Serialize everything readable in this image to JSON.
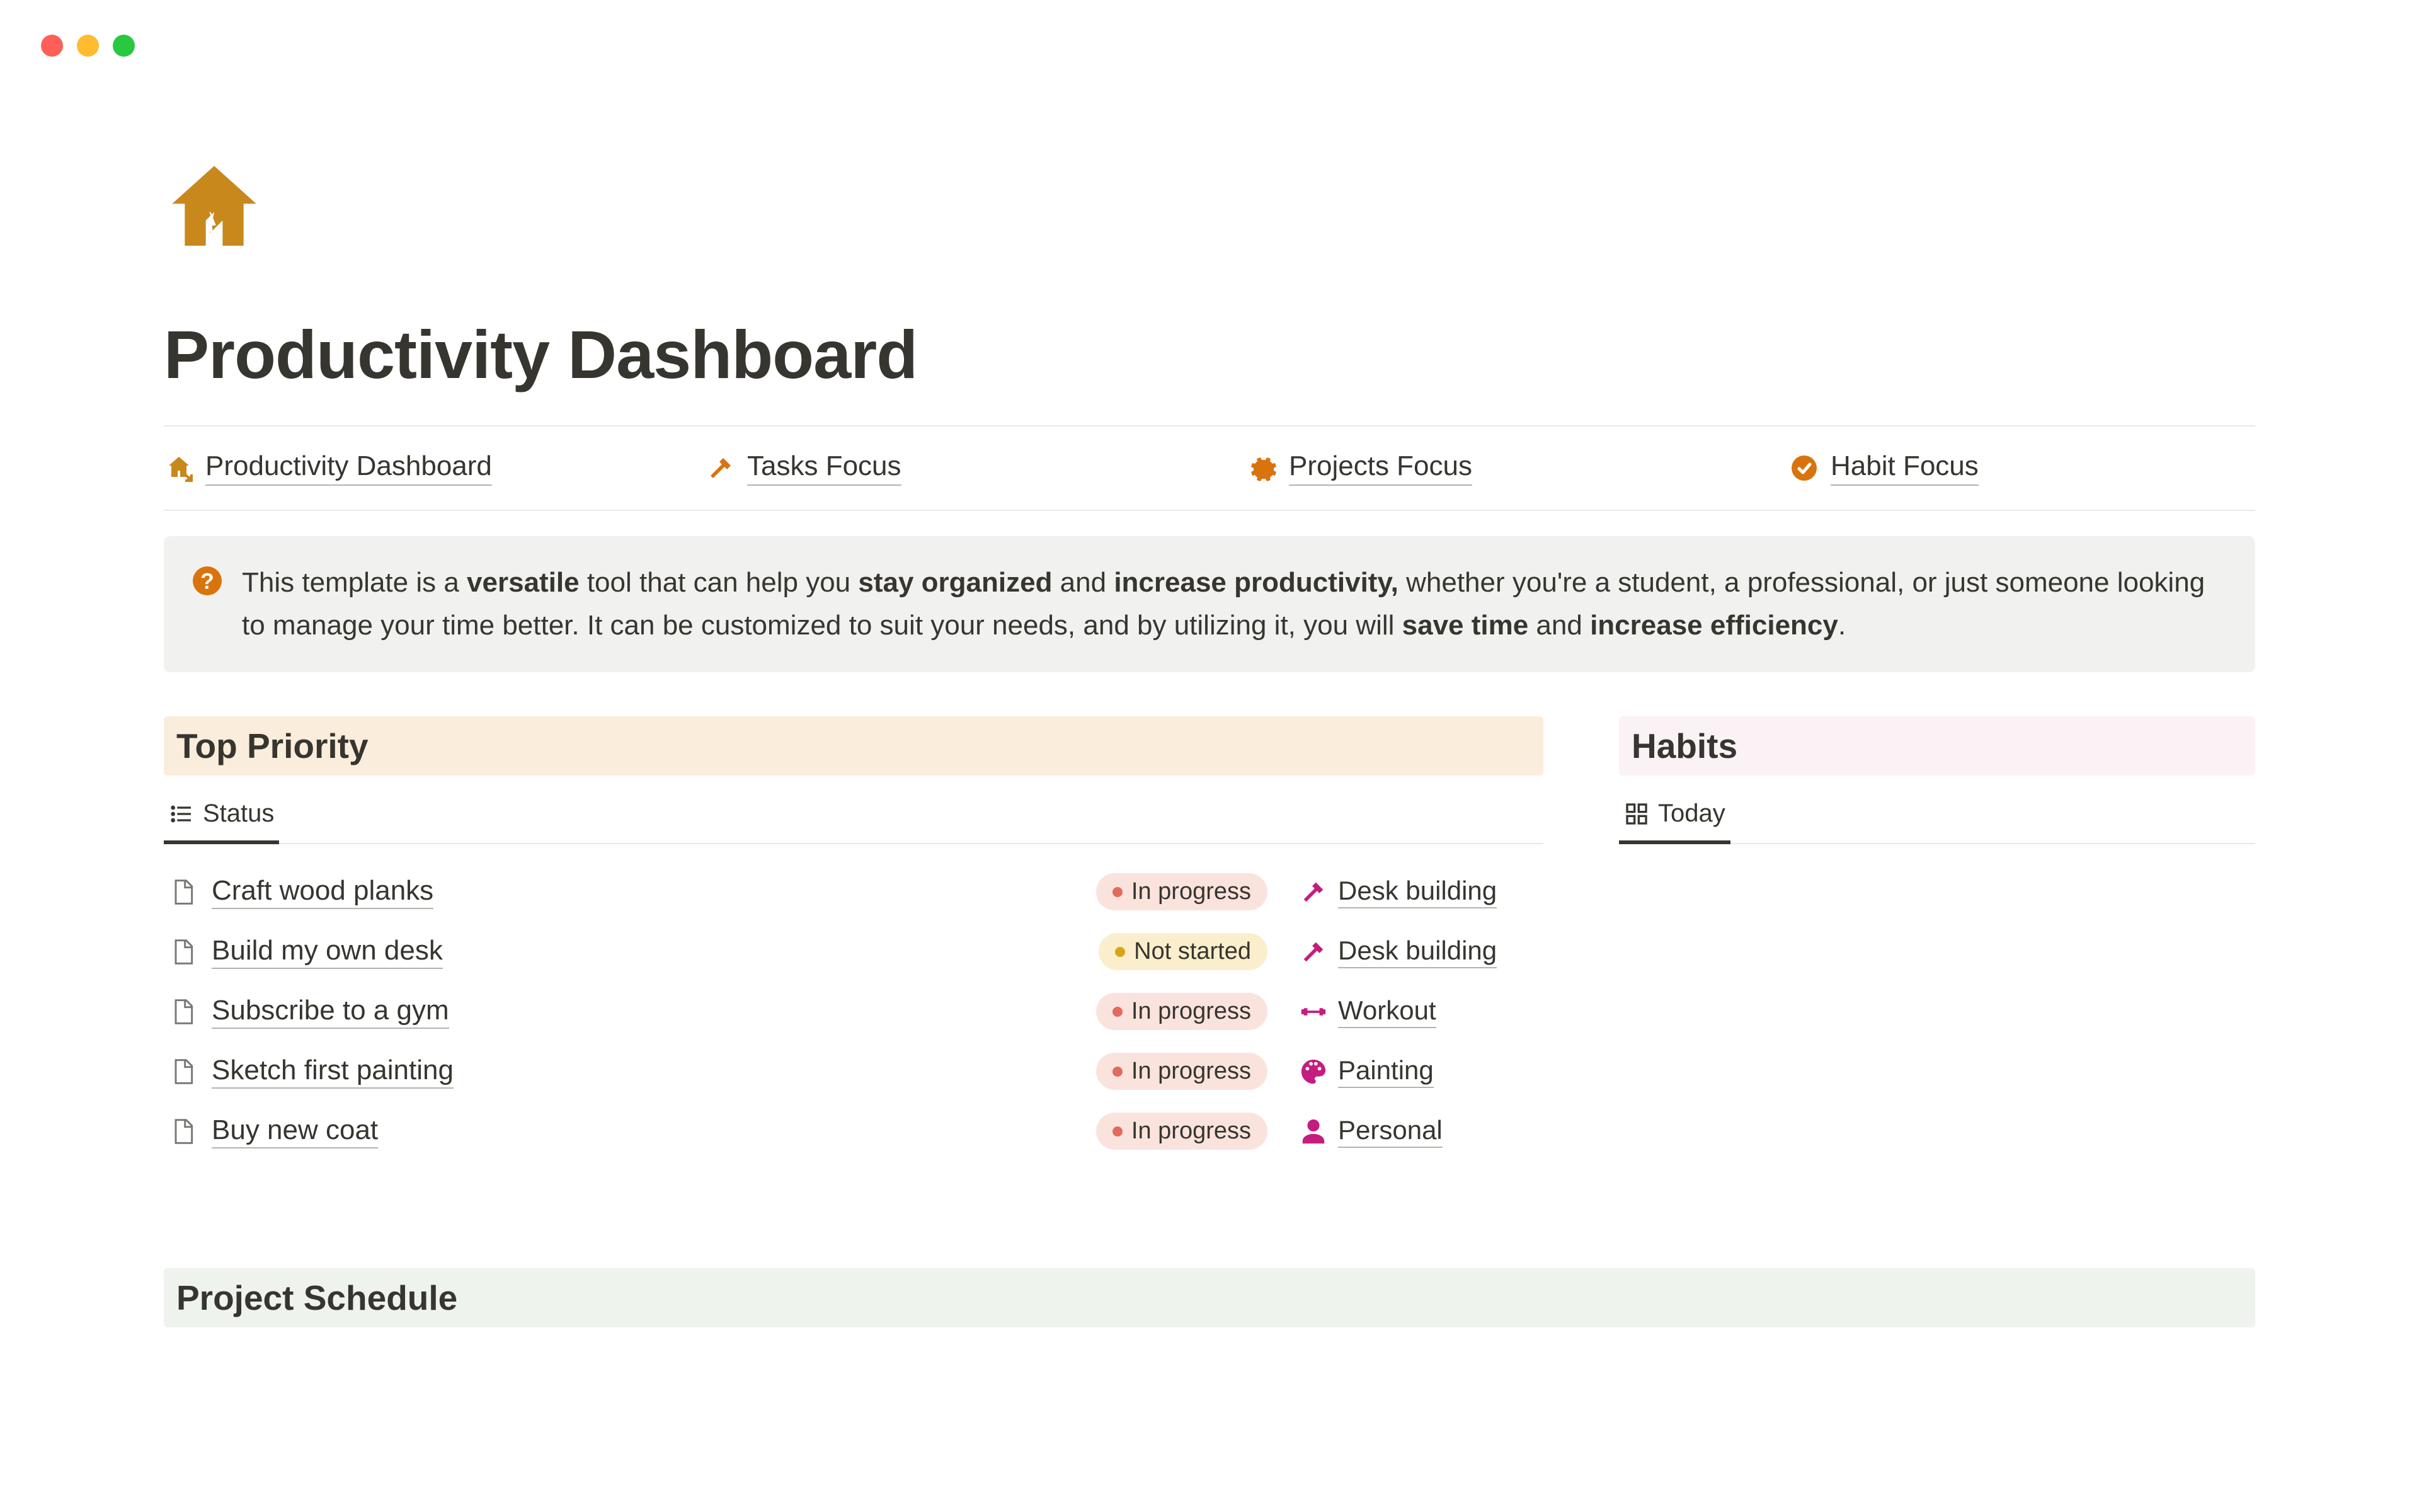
{
  "colors": {
    "accent_gold": "#c8881c",
    "accent_orange": "#d9730d",
    "accent_pink": "#c41d7f",
    "bg_priority": "#faeddc",
    "bg_habits": "#fbf2f5",
    "bg_schedule": "#eef3ed",
    "callout_bg": "#f1f1ef",
    "pill_inprogress_bg": "#fbe3dd",
    "pill_inprogress_dot": "#e16b5c",
    "pill_notstarted_bg": "#faeecd",
    "pill_notstarted_dot": "#d9a514"
  },
  "page": {
    "title": "Productivity Dashboard"
  },
  "nav": {
    "items": [
      {
        "label": "Productivity Dashboard",
        "icon": "home-arrow"
      },
      {
        "label": "Tasks Focus",
        "icon": "hammer"
      },
      {
        "label": "Projects Focus",
        "icon": "gear"
      },
      {
        "label": "Habit Focus",
        "icon": "check-circle"
      }
    ]
  },
  "callout": {
    "segments": {
      "pre1": "This template is a ",
      "bold1": "versatile",
      "pre2": " tool that can help you ",
      "bold2": "stay organized",
      "pre3": " and ",
      "bold3": "increase productivity,",
      "pre4": " whether you're a student, a professional, or just someone looking to manage your time better. It can be customized to suit your needs, and by utilizing it, you will ",
      "bold4": "save time",
      "pre5": " and ",
      "bold5": "increase efficiency",
      "post": "."
    }
  },
  "sections": {
    "priority": {
      "title": "Top Priority",
      "view_tab": "Status"
    },
    "habits": {
      "title": "Habits",
      "view_tab": "Today"
    },
    "schedule": {
      "title": "Project Schedule"
    }
  },
  "tasks": [
    {
      "title": "Craft wood planks",
      "status": "In progress",
      "status_kind": "inprogress",
      "project": "Desk building",
      "project_icon": "hammer-pink"
    },
    {
      "title": "Build my own desk",
      "status": "Not started",
      "status_kind": "notstarted",
      "project": "Desk building",
      "project_icon": "hammer-pink"
    },
    {
      "title": "Subscribe to a gym",
      "status": "In progress",
      "status_kind": "inprogress",
      "project": "Workout",
      "project_icon": "dumbbell"
    },
    {
      "title": "Sketch first painting",
      "status": "In progress",
      "status_kind": "inprogress",
      "project": "Painting",
      "project_icon": "palette"
    },
    {
      "title": "Buy new coat",
      "status": "In progress",
      "status_kind": "inprogress",
      "project": "Personal",
      "project_icon": "person"
    }
  ]
}
